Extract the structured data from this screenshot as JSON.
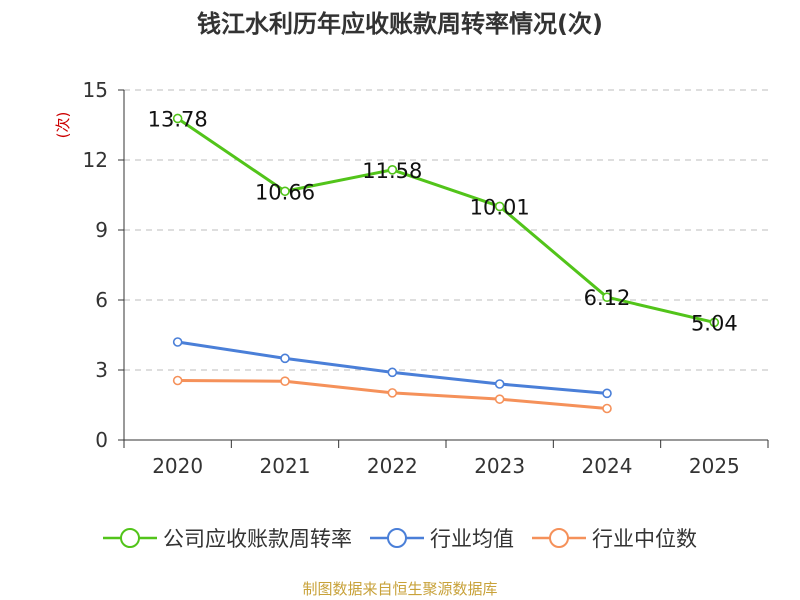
{
  "page": {
    "title": "钱江水利历年应收账款周转率情况(次)",
    "source": "制图数据来自恒生聚源数据库"
  },
  "chart_data": {
    "type": "line",
    "title": "钱江水利历年应收账款周转率情况(次)",
    "xlabel": "",
    "ylabel": "(次)",
    "ylim": [
      0,
      15
    ],
    "yticks": [
      0,
      3,
      6,
      9,
      12,
      15
    ],
    "categories": [
      "2020",
      "2021",
      "2022",
      "2023",
      "2024",
      "2025"
    ],
    "grid": true,
    "legend_position": "bottom",
    "series": [
      {
        "name": "公司应收账款周转率",
        "color": "#52c41a",
        "values": [
          13.78,
          10.66,
          11.58,
          10.01,
          6.12,
          5.04
        ],
        "labels": [
          "13.78",
          "10.66",
          "11.58",
          "10.01",
          "6.12",
          "5.04"
        ]
      },
      {
        "name": "行业均值",
        "color": "#4a7fd8",
        "values": [
          4.2,
          3.5,
          2.9,
          2.4,
          2.0,
          null
        ]
      },
      {
        "name": "行业中位数",
        "color": "#f5915a",
        "values": [
          2.55,
          2.52,
          2.02,
          1.75,
          1.35,
          null
        ]
      }
    ]
  }
}
